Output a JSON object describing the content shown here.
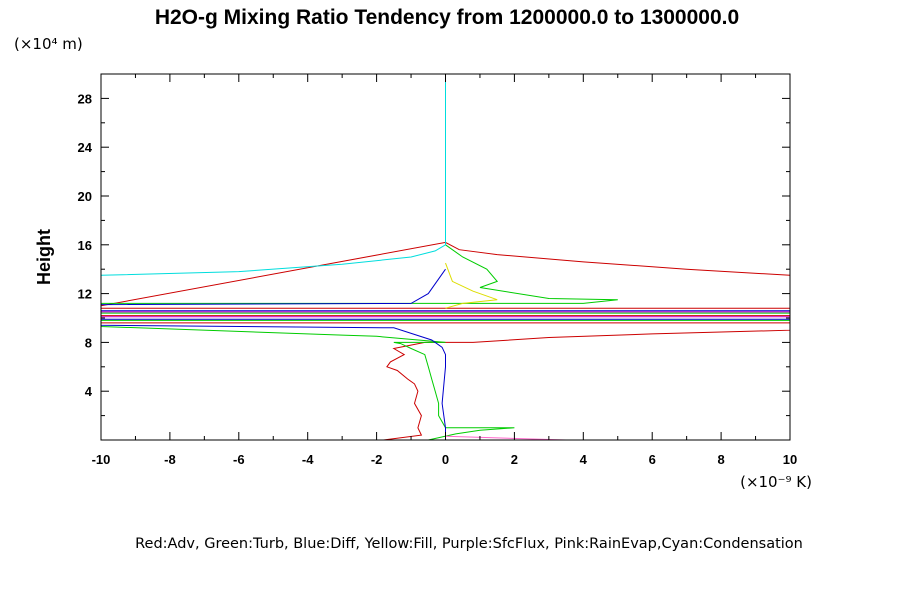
{
  "chart_data": {
    "type": "line",
    "title": "H2O-g Mixing Ratio Tendency from 1200000.0 to 1300000.0",
    "ylabel": "Height",
    "y_unit": "(×10⁴ m)",
    "x_unit": "(×10⁻⁹ K)",
    "xlim": [
      -10,
      10
    ],
    "ylim": [
      0,
      30
    ],
    "x_ticks": [
      -10,
      -8,
      -6,
      -4,
      -2,
      0,
      2,
      4,
      6,
      8,
      10
    ],
    "x_tick_labels": [
      "-10",
      "-8",
      "-6",
      "-4",
      "-2",
      "0",
      "2",
      "4",
      "6",
      "8",
      "10"
    ],
    "y_ticks": [
      4,
      8,
      12,
      16,
      20,
      24,
      28
    ],
    "y_tick_labels": [
      "4",
      "8",
      "12",
      "16",
      "20",
      "24",
      "28"
    ],
    "grid": false,
    "legend_text": "Red:Adv, Green:Turb, Blue:Diff, Yellow:Fill, Purple:SfcFlux, Pink:RainEvap,Cyan:Condensation",
    "series": [
      {
        "name": "Adv",
        "color": "#cc0000",
        "points": [
          [
            -1.8,
            0
          ],
          [
            -0.7,
            0.4
          ],
          [
            -0.8,
            1
          ],
          [
            -0.7,
            2
          ],
          [
            -0.9,
            3
          ],
          [
            -0.8,
            4
          ],
          [
            -0.9,
            4.6
          ],
          [
            -1.1,
            5
          ],
          [
            -1.4,
            5.7
          ],
          [
            -1.7,
            6
          ],
          [
            -1.6,
            6.4
          ],
          [
            -1.2,
            7
          ],
          [
            -1.5,
            7.5
          ],
          [
            -0.6,
            8
          ],
          [
            0,
            8
          ],
          [
            0.8,
            8
          ],
          [
            3,
            8.4
          ],
          [
            6,
            8.7
          ],
          [
            10,
            9
          ],
          [
            10,
            9.6
          ],
          [
            -10,
            9.6
          ],
          [
            -10,
            10.2
          ],
          [
            10,
            10.2
          ],
          [
            10,
            10.8
          ],
          [
            -10,
            10.8
          ],
          [
            -10,
            11
          ],
          [
            0,
            16.2
          ],
          [
            0.4,
            15.6
          ],
          [
            1.5,
            15.2
          ],
          [
            4,
            14.6
          ],
          [
            7,
            14
          ],
          [
            10,
            13.5
          ]
        ]
      },
      {
        "name": "Turb",
        "color": "#00cc00",
        "points": [
          [
            -0.5,
            0
          ],
          [
            0.3,
            0.5
          ],
          [
            1,
            0.8
          ],
          [
            2,
            1
          ],
          [
            1,
            1
          ],
          [
            0,
            1
          ],
          [
            -0.2,
            2
          ],
          [
            -0.2,
            3
          ],
          [
            -0.3,
            4
          ],
          [
            -0.4,
            5
          ],
          [
            -0.5,
            6
          ],
          [
            -0.6,
            7
          ],
          [
            -1,
            7.5
          ],
          [
            -1.3,
            7.9
          ],
          [
            -1.5,
            8
          ],
          [
            0,
            8
          ],
          [
            -2,
            8.5
          ],
          [
            -3,
            8.6
          ],
          [
            -10,
            9.3
          ],
          [
            -10,
            9.8
          ],
          [
            10,
            9.8
          ],
          [
            10,
            10.4
          ],
          [
            -10,
            10.4
          ],
          [
            -10,
            11.2
          ],
          [
            4,
            11.2
          ],
          [
            5,
            11.5
          ],
          [
            3,
            11.6
          ],
          [
            1,
            12.5
          ],
          [
            1.5,
            13
          ],
          [
            1.2,
            14
          ],
          [
            0.5,
            15
          ],
          [
            0,
            16
          ]
        ]
      },
      {
        "name": "Diff",
        "color": "#0000cc",
        "points": [
          [
            0,
            0
          ],
          [
            0,
            1
          ],
          [
            -0.1,
            3
          ],
          [
            0,
            6
          ],
          [
            0,
            7
          ],
          [
            -0.1,
            7.6
          ],
          [
            -0.4,
            8.2
          ],
          [
            -1.5,
            9.2
          ],
          [
            -10,
            9.4
          ],
          [
            -10,
            9.9
          ],
          [
            10,
            9.9
          ],
          [
            10,
            10.6
          ],
          [
            -10,
            10.6
          ],
          [
            -10,
            11.1
          ],
          [
            -1,
            11.2
          ],
          [
            -0.5,
            12
          ],
          [
            0,
            14
          ]
        ]
      },
      {
        "name": "Fill",
        "color": "#dddd00",
        "points": [
          [
            0,
            10.8
          ],
          [
            0.5,
            11.2
          ],
          [
            1.5,
            11.5
          ],
          [
            0.8,
            12.2
          ],
          [
            0.2,
            13
          ],
          [
            0,
            14.5
          ]
        ]
      },
      {
        "name": "SfcFlux",
        "color": "#cc00cc",
        "points": [
          [
            -10,
            10.1
          ],
          [
            10,
            10.1
          ],
          [
            10,
            10.5
          ],
          [
            -10,
            10.5
          ]
        ]
      },
      {
        "name": "RainEvap",
        "color": "#ff66cc",
        "points": [
          [
            2.6,
            0
          ],
          [
            3.5,
            0
          ],
          [
            0,
            0.3
          ]
        ]
      },
      {
        "name": "Condensation",
        "color": "#00dddd",
        "points": [
          [
            -10,
            13.5
          ],
          [
            -6,
            13.8
          ],
          [
            -3,
            14.4
          ],
          [
            -1,
            15
          ],
          [
            -0.3,
            15.5
          ],
          [
            0,
            16
          ],
          [
            0,
            30
          ]
        ]
      }
    ]
  }
}
